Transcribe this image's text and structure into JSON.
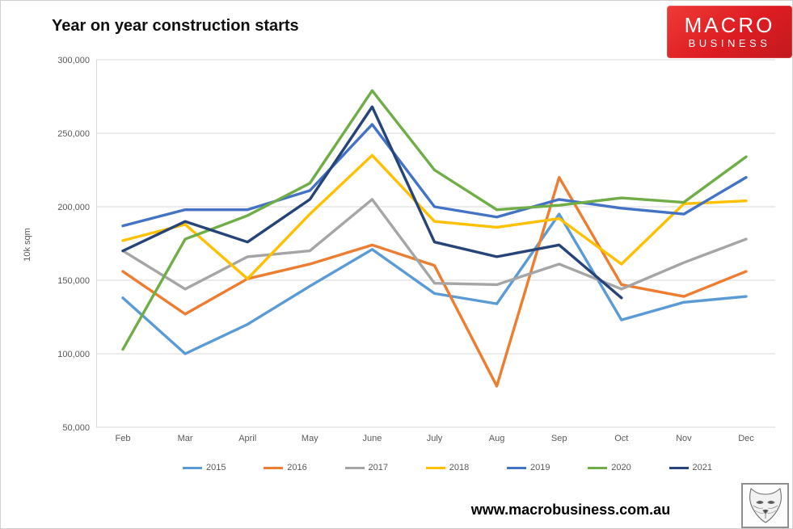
{
  "header": {
    "title": "Year on year construction starts"
  },
  "logo": {
    "line1": "MACRO",
    "line2": "BUSINESS",
    "bg_color": "#dd1c22",
    "text_color": "#ffffff"
  },
  "footer": {
    "website": "www.macrobusiness.com.au"
  },
  "fox_logo": {
    "alt": "fox head pencil sketch"
  },
  "chart_data": {
    "type": "line",
    "title": "Year on year construction starts",
    "ylabel": "10k sqm",
    "ylim": [
      50000,
      300000
    ],
    "ytick_step": 50000,
    "grid": true,
    "legend_position": "bottom",
    "categories": [
      "Feb",
      "Mar",
      "April",
      "May",
      "June",
      "July",
      "Aug",
      "Sep",
      "Oct",
      "Nov",
      "Dec"
    ],
    "series": [
      {
        "name": "2015",
        "color": "#5B9BD5",
        "values": [
          138000,
          100000,
          120000,
          146000,
          171000,
          141000,
          134000,
          195000,
          123000,
          135000,
          139000
        ]
      },
      {
        "name": "2016",
        "color": "#ED7D31",
        "values": [
          156000,
          127000,
          151000,
          161000,
          174000,
          160000,
          78000,
          220000,
          147000,
          139000,
          156000
        ]
      },
      {
        "name": "2017",
        "color": "#A5A5A5",
        "values": [
          170000,
          144000,
          166000,
          170000,
          205000,
          148000,
          147000,
          161000,
          144000,
          162000,
          178000
        ]
      },
      {
        "name": "2018",
        "color": "#FFC000",
        "values": [
          177000,
          188000,
          151000,
          195000,
          235000,
          190000,
          186000,
          192000,
          161000,
          202000,
          204000
        ]
      },
      {
        "name": "2019",
        "color": "#4472C4",
        "values": [
          187000,
          198000,
          198000,
          211000,
          256000,
          200000,
          193000,
          205000,
          199000,
          195000,
          220000
        ]
      },
      {
        "name": "2020",
        "color": "#70AD47",
        "values": [
          103000,
          178000,
          194000,
          216000,
          279000,
          225000,
          198000,
          201000,
          206000,
          203000,
          234000
        ]
      },
      {
        "name": "2021",
        "color": "#264478",
        "values": [
          170000,
          190000,
          176000,
          205000,
          268000,
          176000,
          166000,
          174000,
          138000,
          null,
          null
        ]
      }
    ]
  }
}
